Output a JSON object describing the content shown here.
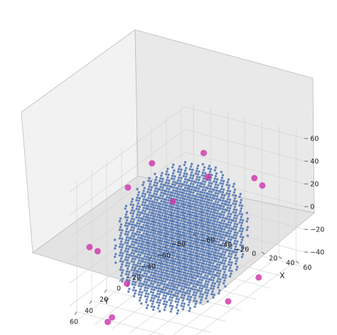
{
  "chart_data": {
    "type": "scatter",
    "projection": "3d",
    "title": "",
    "xlabel": "X",
    "ylabel": "Y",
    "zlabel": "",
    "xlim": [
      -70,
      70
    ],
    "ylim": [
      -85,
      70
    ],
    "zlim": [
      -50,
      65
    ],
    "x_ticks": [
      "−60",
      "−40",
      "−20",
      "0",
      "20",
      "40",
      "60"
    ],
    "y_ticks": [
      "60",
      "40",
      "20",
      "0",
      "−20",
      "−40",
      "−60",
      "−80"
    ],
    "z_ticks": [
      "60",
      "40",
      "20",
      "0",
      "−20",
      "−40"
    ],
    "x_tick_values": [
      -60,
      -40,
      -20,
      0,
      20,
      40,
      60
    ],
    "y_tick_values": [
      60,
      40,
      20,
      0,
      -20,
      -40,
      -60,
      -80
    ],
    "z_tick_values": [
      60,
      40,
      20,
      0,
      -20,
      -40
    ],
    "grid": true,
    "pane_color": "#f0f0f0",
    "series": [
      {
        "marker_color": "#4c72b0",
        "marker_size": "small",
        "distribution": "regular lattice of points filling a ball of radius about 60 centered at the origin",
        "lattice_spacing": 7.5,
        "ball_radius": 60
      },
      {
        "marker_color": "#cc33aa",
        "marker_size": "large",
        "points": [
          {
            "x": -55,
            "y": 60,
            "z": 10
          },
          {
            "x": -50,
            "y": 55,
            "z": 5
          },
          {
            "x": -45,
            "y": 20,
            "z": 45
          },
          {
            "x": -30,
            "y": 5,
            "z": 62
          },
          {
            "x": 0,
            "y": -30,
            "z": 60
          },
          {
            "x": -10,
            "y": 0,
            "z": 30
          },
          {
            "x": 5,
            "y": -30,
            "z": 40
          },
          {
            "x": -20,
            "y": 50,
            "z": -20
          },
          {
            "x": -20,
            "y": 70,
            "z": -40
          },
          {
            "x": -25,
            "y": 70,
            "z": -45
          },
          {
            "x": 55,
            "y": 0,
            "z": -45
          },
          {
            "x": 60,
            "y": -35,
            "z": -40
          },
          {
            "x": 20,
            "y": -75,
            "z": 20
          },
          {
            "x": 25,
            "y": -80,
            "z": 12
          }
        ]
      }
    ]
  }
}
